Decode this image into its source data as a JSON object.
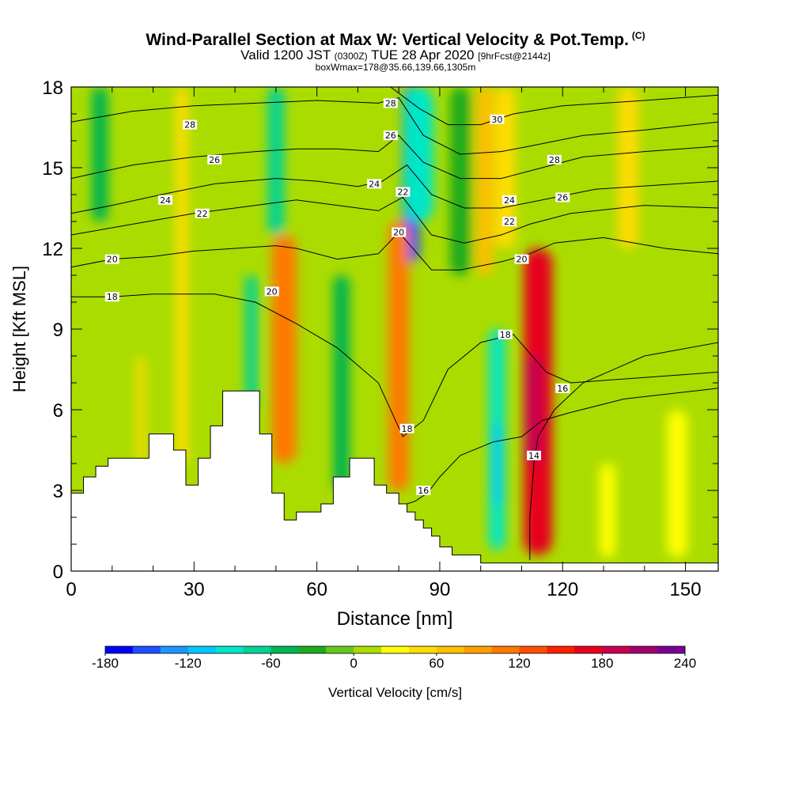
{
  "header": {
    "title": "Wind-Parallel Section at Max W: Vertical Velocity & Pot.Temp.",
    "title_mark": "(C)",
    "valid_prefix": "Valid 1200 JST",
    "valid_small": "(0300Z)",
    "valid_date": "TUE 28 Apr 2020",
    "forecast_small": "[9hrFcst@2144z]",
    "box_info": "boxWmax=178@35.66,139.66,1305m"
  },
  "chart_data": {
    "type": "heatmap",
    "xlabel": "Distance [nm]",
    "ylabel": "Height [Kft MSL]",
    "xlim": [
      0,
      158
    ],
    "ylim": [
      0,
      18
    ],
    "xticks": [
      0,
      30,
      60,
      90,
      120,
      150
    ],
    "yticks": [
      0,
      3,
      6,
      9,
      12,
      15,
      18
    ],
    "colorbar": {
      "label": "Vertical Velocity [cm/s]",
      "min": -180,
      "max": 240,
      "step": 20,
      "tick_labels": [
        -180,
        -120,
        -60,
        0,
        60,
        120,
        180,
        240
      ],
      "colors": [
        "#0000ff",
        "#1e50ff",
        "#1e96ff",
        "#00c8ff",
        "#00e6c8",
        "#00d296",
        "#00b450",
        "#1eaa1e",
        "#64c81e",
        "#aadc00",
        "#ffff00",
        "#ffdc00",
        "#ffbe00",
        "#ffa000",
        "#ff7800",
        "#ff5000",
        "#ff1e00",
        "#e6001e",
        "#c80050",
        "#a0006e",
        "#780096"
      ]
    },
    "velocity_features": [
      {
        "x_center": 83,
        "z_bottom": 11.5,
        "z_top": 18,
        "width": 4,
        "value": -150
      },
      {
        "x_center": 85,
        "z_bottom": 13,
        "z_top": 18,
        "width": 7,
        "value": -90
      },
      {
        "x_center": 114,
        "z_bottom": 0.6,
        "z_top": 12,
        "width": 7,
        "value": 175
      },
      {
        "x_center": 113,
        "z_bottom": 4,
        "z_top": 8,
        "width": 4,
        "value": 190
      },
      {
        "x_center": 52,
        "z_bottom": 4,
        "z_top": 12.5,
        "width": 6,
        "value": 110
      },
      {
        "x_center": 80,
        "z_bottom": 3,
        "z_top": 13,
        "width": 5,
        "value": 100
      },
      {
        "x_center": 50,
        "z_bottom": 12.5,
        "z_top": 18,
        "width": 4,
        "value": -80
      },
      {
        "x_center": 44,
        "z_bottom": 6,
        "z_top": 11,
        "width": 3,
        "value": -70
      },
      {
        "x_center": 66,
        "z_bottom": 3,
        "z_top": 11,
        "width": 4,
        "value": -60
      },
      {
        "x_center": 104,
        "z_bottom": 0.8,
        "z_top": 9,
        "width": 4,
        "value": -90
      },
      {
        "x_center": 104,
        "z_bottom": 2.5,
        "z_top": 5.5,
        "width": 2,
        "value": -120
      },
      {
        "x_center": 95,
        "z_bottom": 11,
        "z_top": 18,
        "width": 5,
        "value": -40
      },
      {
        "x_center": 101,
        "z_bottom": 11,
        "z_top": 18,
        "width": 4,
        "value": 60
      },
      {
        "x_center": 106,
        "z_bottom": 12,
        "z_top": 18,
        "width": 5,
        "value": 40
      },
      {
        "x_center": 27,
        "z_bottom": 4,
        "z_top": 18,
        "width": 3,
        "value": 45
      },
      {
        "x_center": 7,
        "z_bottom": 13,
        "z_top": 18,
        "width": 4,
        "value": -45
      },
      {
        "x_center": 17,
        "z_bottom": 4,
        "z_top": 8,
        "width": 2,
        "value": 40
      },
      {
        "x_center": 136,
        "z_bottom": 12,
        "z_top": 18,
        "width": 5,
        "value": 40
      },
      {
        "x_center": 148,
        "z_bottom": 0.5,
        "z_top": 6,
        "width": 5,
        "value": 25
      },
      {
        "x_center": 131,
        "z_bottom": 0.5,
        "z_top": 4,
        "width": 4,
        "value": 35
      }
    ],
    "theta_contours": [
      {
        "label": "14",
        "points": [
          [
            112,
            0.4
          ],
          [
            112,
            2
          ],
          [
            113,
            4
          ],
          [
            114,
            5
          ],
          [
            118,
            6
          ],
          [
            125,
            7
          ],
          [
            140,
            8
          ],
          [
            158,
            8.5
          ]
        ]
      },
      {
        "label": "16",
        "points": [
          [
            76,
            2.3
          ],
          [
            80,
            2.4
          ],
          [
            84,
            2.6
          ],
          [
            87,
            2.9
          ],
          [
            90,
            3.5
          ],
          [
            95,
            4.3
          ],
          [
            103,
            4.8
          ],
          [
            110,
            5.0
          ],
          [
            115,
            5.6
          ],
          [
            122,
            5.9
          ],
          [
            135,
            6.4
          ],
          [
            158,
            6.8
          ]
        ]
      },
      {
        "label": "18",
        "points": [
          [
            0,
            10.2
          ],
          [
            10,
            10.2
          ],
          [
            20,
            10.3
          ],
          [
            35,
            10.3
          ],
          [
            45,
            10.0
          ],
          [
            55,
            9.2
          ],
          [
            65,
            8.3
          ],
          [
            75,
            7.0
          ],
          [
            81,
            5.0
          ],
          [
            86,
            5.6
          ],
          [
            92,
            7.5
          ],
          [
            100,
            8.5
          ],
          [
            108,
            8.8
          ],
          [
            116,
            7.4
          ],
          [
            122,
            7.0
          ],
          [
            140,
            7.2
          ],
          [
            158,
            7.4
          ]
        ]
      },
      {
        "label": "20",
        "points": [
          [
            0,
            11.3
          ],
          [
            10,
            11.6
          ],
          [
            20,
            11.7
          ],
          [
            30,
            11.9
          ],
          [
            40,
            12.0
          ],
          [
            50,
            12.1
          ],
          [
            55,
            12.0
          ],
          [
            65,
            11.6
          ],
          [
            75,
            11.8
          ],
          [
            80,
            12.6
          ],
          [
            88,
            11.2
          ],
          [
            95,
            11.2
          ],
          [
            105,
            11.5
          ],
          [
            112,
            11.8
          ],
          [
            118,
            12.2
          ],
          [
            130,
            12.4
          ],
          [
            145,
            12.0
          ],
          [
            158,
            11.8
          ]
        ]
      },
      {
        "label": "22",
        "points": [
          [
            0,
            12.5
          ],
          [
            15,
            12.9
          ],
          [
            30,
            13.3
          ],
          [
            45,
            13.6
          ],
          [
            55,
            13.8
          ],
          [
            65,
            13.6
          ],
          [
            75,
            13.4
          ],
          [
            81,
            13.9
          ],
          [
            88,
            12.5
          ],
          [
            96,
            12.2
          ],
          [
            105,
            12.5
          ],
          [
            112,
            12.9
          ],
          [
            122,
            13.3
          ],
          [
            140,
            13.6
          ],
          [
            158,
            13.5
          ]
        ]
      },
      {
        "label": "24",
        "points": [
          [
            0,
            13.3
          ],
          [
            10,
            13.6
          ],
          [
            22,
            14.0
          ],
          [
            35,
            14.4
          ],
          [
            50,
            14.6
          ],
          [
            60,
            14.5
          ],
          [
            70,
            14.3
          ],
          [
            76,
            14.5
          ],
          [
            82,
            15.1
          ],
          [
            88,
            14.0
          ],
          [
            96,
            13.5
          ],
          [
            105,
            13.5
          ],
          [
            115,
            13.8
          ],
          [
            128,
            14.2
          ],
          [
            158,
            14.5
          ]
        ]
      },
      {
        "label": "26",
        "points": [
          [
            0,
            14.6
          ],
          [
            15,
            15.1
          ],
          [
            30,
            15.4
          ],
          [
            45,
            15.6
          ],
          [
            55,
            15.7
          ],
          [
            65,
            15.7
          ],
          [
            75,
            15.6
          ],
          [
            80,
            16.2
          ],
          [
            86,
            15.2
          ],
          [
            95,
            14.6
          ],
          [
            105,
            14.6
          ],
          [
            115,
            15.0
          ],
          [
            125,
            15.4
          ],
          [
            140,
            15.6
          ],
          [
            158,
            15.8
          ]
        ]
      },
      {
        "label": "28",
        "points": [
          [
            0,
            16.7
          ],
          [
            15,
            17.1
          ],
          [
            30,
            17.3
          ],
          [
            45,
            17.4
          ],
          [
            60,
            17.5
          ],
          [
            75,
            17.4
          ],
          [
            80,
            17.6
          ],
          [
            86,
            16.2
          ],
          [
            95,
            15.5
          ],
          [
            105,
            15.6
          ],
          [
            112,
            15.8
          ],
          [
            125,
            16.2
          ],
          [
            140,
            16.4
          ],
          [
            158,
            16.7
          ]
        ]
      },
      {
        "label": "30",
        "points": [
          [
            78,
            18
          ],
          [
            85,
            17.2
          ],
          [
            92,
            16.6
          ],
          [
            100,
            16.6
          ],
          [
            108,
            17.0
          ],
          [
            120,
            17.3
          ],
          [
            140,
            17.5
          ],
          [
            158,
            17.7
          ]
        ]
      }
    ],
    "contour_labels": [
      {
        "text": "28",
        "x": 29,
        "z": 16.6
      },
      {
        "text": "26",
        "x": 35,
        "z": 15.3
      },
      {
        "text": "24",
        "x": 23,
        "z": 13.8
      },
      {
        "text": "22",
        "x": 32,
        "z": 13.3
      },
      {
        "text": "20",
        "x": 10,
        "z": 11.6
      },
      {
        "text": "18",
        "x": 10,
        "z": 10.2
      },
      {
        "text": "20",
        "x": 49,
        "z": 10.4
      },
      {
        "text": "28",
        "x": 78,
        "z": 17.4
      },
      {
        "text": "26",
        "x": 78,
        "z": 16.2
      },
      {
        "text": "24",
        "x": 74,
        "z": 14.4
      },
      {
        "text": "22",
        "x": 81,
        "z": 14.1
      },
      {
        "text": "20",
        "x": 80,
        "z": 12.6
      },
      {
        "text": "30",
        "x": 104,
        "z": 16.8
      },
      {
        "text": "28",
        "x": 118,
        "z": 15.3
      },
      {
        "text": "24",
        "x": 107,
        "z": 13.8
      },
      {
        "text": "26",
        "x": 120,
        "z": 13.9
      },
      {
        "text": "22",
        "x": 107,
        "z": 13.0
      },
      {
        "text": "20",
        "x": 110,
        "z": 11.6
      },
      {
        "text": "18",
        "x": 106,
        "z": 8.8
      },
      {
        "text": "16",
        "x": 120,
        "z": 6.8
      },
      {
        "text": "18",
        "x": 82,
        "z": 5.3
      },
      {
        "text": "16",
        "x": 86,
        "z": 3.0
      },
      {
        "text": "14",
        "x": 113,
        "z": 4.3
      }
    ],
    "terrain": [
      [
        0,
        2.9
      ],
      [
        3,
        2.9
      ],
      [
        3,
        3.5
      ],
      [
        6,
        3.5
      ],
      [
        6,
        3.9
      ],
      [
        9,
        3.9
      ],
      [
        9,
        4.2
      ],
      [
        19,
        4.2
      ],
      [
        19,
        5.1
      ],
      [
        25,
        5.1
      ],
      [
        25,
        4.5
      ],
      [
        28,
        4.5
      ],
      [
        28,
        3.2
      ],
      [
        31,
        3.2
      ],
      [
        31,
        4.2
      ],
      [
        34,
        4.2
      ],
      [
        34,
        5.4
      ],
      [
        37,
        5.4
      ],
      [
        37,
        6.7
      ],
      [
        46,
        6.7
      ],
      [
        46,
        5.1
      ],
      [
        49,
        5.1
      ],
      [
        49,
        2.9
      ],
      [
        52,
        2.9
      ],
      [
        52,
        1.9
      ],
      [
        55,
        1.9
      ],
      [
        55,
        2.2
      ],
      [
        61,
        2.2
      ],
      [
        61,
        2.5
      ],
      [
        64,
        2.5
      ],
      [
        64,
        3.5
      ],
      [
        68,
        3.5
      ],
      [
        68,
        4.2
      ],
      [
        74,
        4.2
      ],
      [
        74,
        3.2
      ],
      [
        77,
        3.2
      ],
      [
        77,
        2.9
      ],
      [
        80,
        2.9
      ],
      [
        80,
        2.5
      ],
      [
        82,
        2.5
      ],
      [
        82,
        2.2
      ],
      [
        84,
        2.2
      ],
      [
        84,
        1.9
      ],
      [
        86,
        1.9
      ],
      [
        86,
        1.6
      ],
      [
        88,
        1.6
      ],
      [
        88,
        1.3
      ],
      [
        90,
        1.3
      ],
      [
        90,
        0.9
      ],
      [
        93,
        0.9
      ],
      [
        93,
        0.6
      ],
      [
        100,
        0.6
      ],
      [
        100,
        0.3
      ],
      [
        158,
        0.3
      ]
    ]
  }
}
